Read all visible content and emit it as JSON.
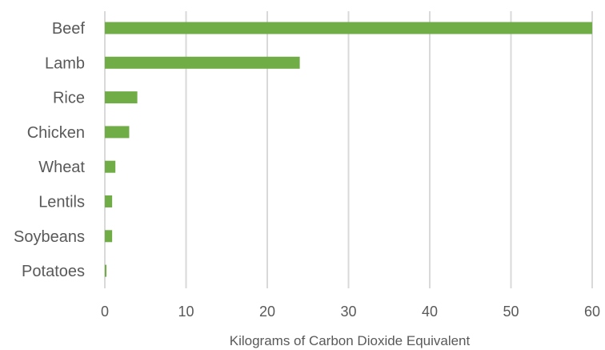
{
  "chart_data": {
    "type": "bar",
    "orientation": "horizontal",
    "categories": [
      "Beef",
      "Lamb",
      "Rice",
      "Chicken",
      "Wheat",
      "Lentils",
      "Soybeans",
      "Potatoes"
    ],
    "values": [
      60,
      24,
      4,
      3,
      1.3,
      0.9,
      0.9,
      0.2
    ],
    "title": "",
    "xlabel": "Kilograms of Carbon Dioxide Equivalent",
    "ylabel": "",
    "xlim": [
      0,
      60
    ],
    "xticks": [
      "0",
      "10",
      "20",
      "30",
      "40",
      "50",
      "60"
    ],
    "grid": "vertical",
    "legend": "none",
    "bar_color": "#70ad47",
    "grid_color": "#d9d9d9"
  }
}
